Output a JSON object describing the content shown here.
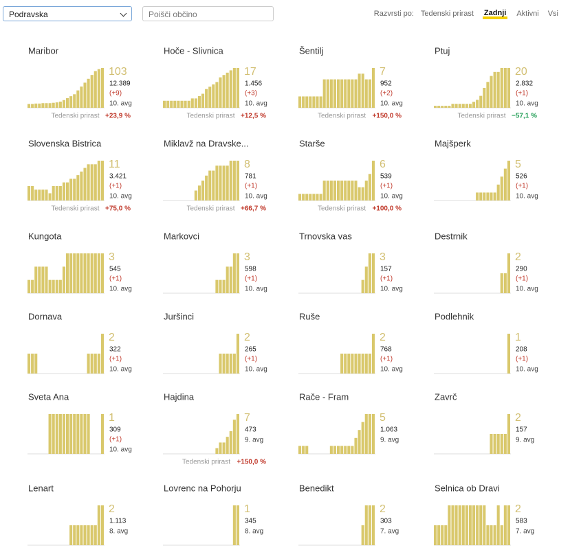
{
  "header": {
    "region": "Podravska",
    "search_placeholder": "Poišči občino",
    "sort_label": "Razvrsti po:",
    "sort_options": [
      "Tedenski prirast",
      "Zadnji",
      "Aktivni",
      "Vsi"
    ],
    "sort_active": 1
  },
  "bar_color": "#d9c86c",
  "number_color": "#d2bf72",
  "growth_label": "Tedenski prirast",
  "cards": [
    {
      "name": "Maribor",
      "active": 103,
      "total": "12.389",
      "delta": "(+9)",
      "date": "10. avg",
      "growth": "+23,9 %",
      "growth_color": "#c0392b",
      "bars": [
        10,
        10,
        11,
        11,
        12,
        12,
        12,
        13,
        14,
        16,
        20,
        25,
        30,
        35,
        45,
        55,
        65,
        75,
        85,
        95,
        100,
        103
      ]
    },
    {
      "name": "Hoče - Slivnica",
      "active": 17,
      "total": "1.456",
      "delta": "(+3)",
      "date": "10. avg",
      "growth": "+12,5 %",
      "growth_color": "#c0392b",
      "bars": [
        3,
        3,
        3,
        3,
        3,
        3,
        3,
        3,
        4,
        4,
        5,
        6,
        8,
        9,
        10,
        11,
        13,
        14,
        15,
        16,
        17,
        17
      ]
    },
    {
      "name": "Šentilj",
      "active": 7,
      "total": "952",
      "delta": "(+2)",
      "date": "10. avg",
      "growth": "+150,0 %",
      "growth_color": "#c0392b",
      "bars": [
        2,
        2,
        2,
        2,
        2,
        2,
        2,
        5,
        5,
        5,
        5,
        5,
        5,
        5,
        5,
        5,
        5,
        6,
        6,
        5,
        5,
        7
      ]
    },
    {
      "name": "Ptuj",
      "active": 20,
      "total": "2.832",
      "delta": "(+1)",
      "date": "10. avg",
      "growth": "−57,1 %",
      "growth_color": "#27a05a",
      "bars": [
        1,
        1,
        1,
        1,
        1,
        2,
        2,
        2,
        2,
        2,
        2,
        3,
        4,
        6,
        10,
        13,
        16,
        18,
        18,
        20,
        20,
        20
      ]
    },
    {
      "name": "Slovenska Bistrica",
      "active": 11,
      "total": "3.421",
      "delta": "(+1)",
      "date": "10. avg",
      "growth": "+75,0 %",
      "growth_color": "#c0392b",
      "bars": [
        4,
        4,
        3,
        3,
        3,
        3,
        2,
        4,
        4,
        4,
        5,
        5,
        6,
        6,
        7,
        8,
        9,
        10,
        10,
        10,
        11,
        11
      ]
    },
    {
      "name": "Miklavž na Dravske...",
      "active": 8,
      "total": "781",
      "delta": "(+1)",
      "date": "10. avg",
      "growth": "+66,7 %",
      "growth_color": "#c0392b",
      "bars": [
        null,
        null,
        null,
        null,
        null,
        null,
        null,
        null,
        null,
        2,
        3,
        4,
        5,
        6,
        6,
        7,
        7,
        7,
        7,
        8,
        8,
        8
      ]
    },
    {
      "name": "Starše",
      "active": 6,
      "total": "539",
      "delta": "(+1)",
      "date": "10. avg",
      "growth": "+100,0 %",
      "growth_color": "#c0392b",
      "bars": [
        1,
        1,
        1,
        1,
        1,
        1,
        1,
        3,
        3,
        3,
        3,
        3,
        3,
        3,
        3,
        3,
        3,
        2,
        2,
        3,
        4,
        6
      ]
    },
    {
      "name": "Majšperk",
      "active": 5,
      "total": "526",
      "delta": "(+1)",
      "date": "10. avg",
      "bars": [
        null,
        null,
        null,
        null,
        null,
        null,
        null,
        null,
        null,
        null,
        null,
        null,
        1,
        1,
        1,
        1,
        1,
        1,
        2,
        3,
        4,
        5
      ]
    },
    {
      "name": "Kungota",
      "active": 3,
      "total": "545",
      "delta": "(+1)",
      "date": "10. avg",
      "bars": [
        1,
        1,
        2,
        2,
        2,
        2,
        1,
        1,
        1,
        1,
        2,
        3,
        3,
        3,
        3,
        3,
        3,
        3,
        3,
        3,
        3,
        3
      ]
    },
    {
      "name": "Markovci",
      "active": 3,
      "total": "598",
      "delta": "(+1)",
      "date": "10. avg",
      "bars": [
        null,
        null,
        null,
        null,
        null,
        null,
        null,
        null,
        null,
        null,
        null,
        null,
        null,
        null,
        null,
        1,
        1,
        1,
        2,
        2,
        3,
        3
      ]
    },
    {
      "name": "Trnovska vas",
      "active": 3,
      "total": "157",
      "delta": "(+1)",
      "date": "10. avg",
      "bars": [
        null,
        null,
        null,
        null,
        null,
        null,
        null,
        null,
        null,
        null,
        null,
        null,
        null,
        null,
        null,
        null,
        null,
        null,
        1,
        2,
        3,
        3
      ]
    },
    {
      "name": "Destrnik",
      "active": 2,
      "total": "290",
      "delta": "(+1)",
      "date": "10. avg",
      "bars": [
        null,
        null,
        null,
        null,
        null,
        null,
        null,
        null,
        null,
        null,
        null,
        null,
        null,
        null,
        null,
        null,
        null,
        null,
        null,
        1,
        1,
        2
      ]
    },
    {
      "name": "Dornava",
      "active": 2,
      "total": "322",
      "delta": "(+1)",
      "date": "10. avg",
      "bars": [
        1,
        1,
        1,
        null,
        null,
        null,
        null,
        null,
        null,
        null,
        null,
        null,
        null,
        null,
        null,
        null,
        null,
        1,
        1,
        1,
        1,
        2
      ]
    },
    {
      "name": "Juršinci",
      "active": 2,
      "total": "265",
      "delta": "(+1)",
      "date": "10. avg",
      "bars": [
        null,
        null,
        null,
        null,
        null,
        null,
        null,
        null,
        null,
        null,
        null,
        null,
        null,
        null,
        null,
        null,
        1,
        1,
        1,
        1,
        1,
        2
      ]
    },
    {
      "name": "Ruše",
      "active": 2,
      "total": "768",
      "delta": "(+1)",
      "date": "10. avg",
      "bars": [
        null,
        null,
        null,
        null,
        null,
        null,
        null,
        null,
        null,
        null,
        null,
        null,
        1,
        1,
        1,
        1,
        1,
        1,
        1,
        1,
        1,
        2
      ]
    },
    {
      "name": "Podlehnik",
      "active": 1,
      "total": "208",
      "delta": "(+1)",
      "date": "10. avg",
      "bars": [
        null,
        null,
        null,
        null,
        null,
        null,
        null,
        null,
        null,
        null,
        null,
        null,
        null,
        null,
        null,
        null,
        null,
        null,
        null,
        null,
        null,
        1
      ]
    },
    {
      "name": "Sveta Ana",
      "active": 1,
      "total": "309",
      "delta": "(+1)",
      "date": "10. avg",
      "bars": [
        null,
        null,
        null,
        null,
        null,
        null,
        1,
        1,
        1,
        1,
        1,
        1,
        1,
        1,
        1,
        1,
        1,
        1,
        null,
        null,
        null,
        1
      ]
    },
    {
      "name": "Hajdina",
      "active": 7,
      "total": "473",
      "date": "9. avg",
      "growth": "+150,0 %",
      "growth_color": "#c0392b",
      "bars": [
        null,
        null,
        null,
        null,
        null,
        null,
        null,
        null,
        null,
        null,
        null,
        null,
        null,
        null,
        null,
        1,
        2,
        2,
        3,
        4,
        6,
        7
      ]
    },
    {
      "name": "Rače - Fram",
      "active": 5,
      "total": "1.063",
      "date": "9. avg",
      "bars": [
        1,
        1,
        1,
        null,
        null,
        null,
        null,
        null,
        null,
        1,
        1,
        1,
        1,
        1,
        1,
        1,
        2,
        3,
        4,
        5,
        5,
        5
      ]
    },
    {
      "name": "Zavrč",
      "active": 2,
      "total": "157",
      "date": "9. avg",
      "bars": [
        null,
        null,
        null,
        null,
        null,
        null,
        null,
        null,
        null,
        null,
        null,
        null,
        null,
        null,
        null,
        null,
        1,
        1,
        1,
        1,
        1,
        2
      ]
    },
    {
      "name": "Lenart",
      "active": 2,
      "total": "1.113",
      "date": "8. avg",
      "bars": [
        null,
        null,
        null,
        null,
        null,
        null,
        null,
        null,
        null,
        null,
        null,
        null,
        1,
        1,
        1,
        1,
        1,
        1,
        1,
        1,
        2,
        2
      ]
    },
    {
      "name": "Lovrenc na Pohorju",
      "active": 1,
      "total": "345",
      "date": "8. avg",
      "bars": [
        null,
        null,
        null,
        null,
        null,
        null,
        null,
        null,
        null,
        null,
        null,
        null,
        null,
        null,
        null,
        null,
        null,
        null,
        null,
        null,
        1,
        1
      ]
    },
    {
      "name": "Benedikt",
      "active": 2,
      "total": "303",
      "date": "7. avg",
      "bars": [
        null,
        null,
        null,
        null,
        null,
        null,
        null,
        null,
        null,
        null,
        null,
        null,
        null,
        null,
        null,
        null,
        null,
        null,
        1,
        2,
        2,
        2
      ]
    },
    {
      "name": "Selnica ob Dravi",
      "active": 2,
      "total": "583",
      "date": "7. avg",
      "bars": [
        1,
        1,
        1,
        1,
        2,
        2,
        2,
        2,
        2,
        2,
        2,
        2,
        2,
        2,
        2,
        1,
        1,
        1,
        2,
        1,
        2,
        2
      ]
    }
  ]
}
